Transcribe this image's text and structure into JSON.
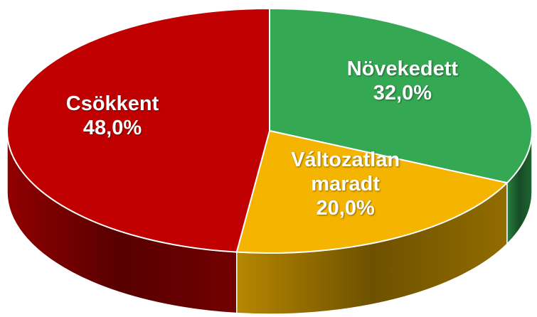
{
  "chart_data": {
    "type": "pie",
    "categories": [
      "Növekedett",
      "Változatlan maradt",
      "Csökkent"
    ],
    "values": [
      32,
      20,
      48
    ],
    "value_labels": [
      "32,0%",
      "20,0%",
      "48,0%"
    ],
    "colors": [
      "#34a853",
      "#f4b400",
      "#c00000"
    ]
  }
}
